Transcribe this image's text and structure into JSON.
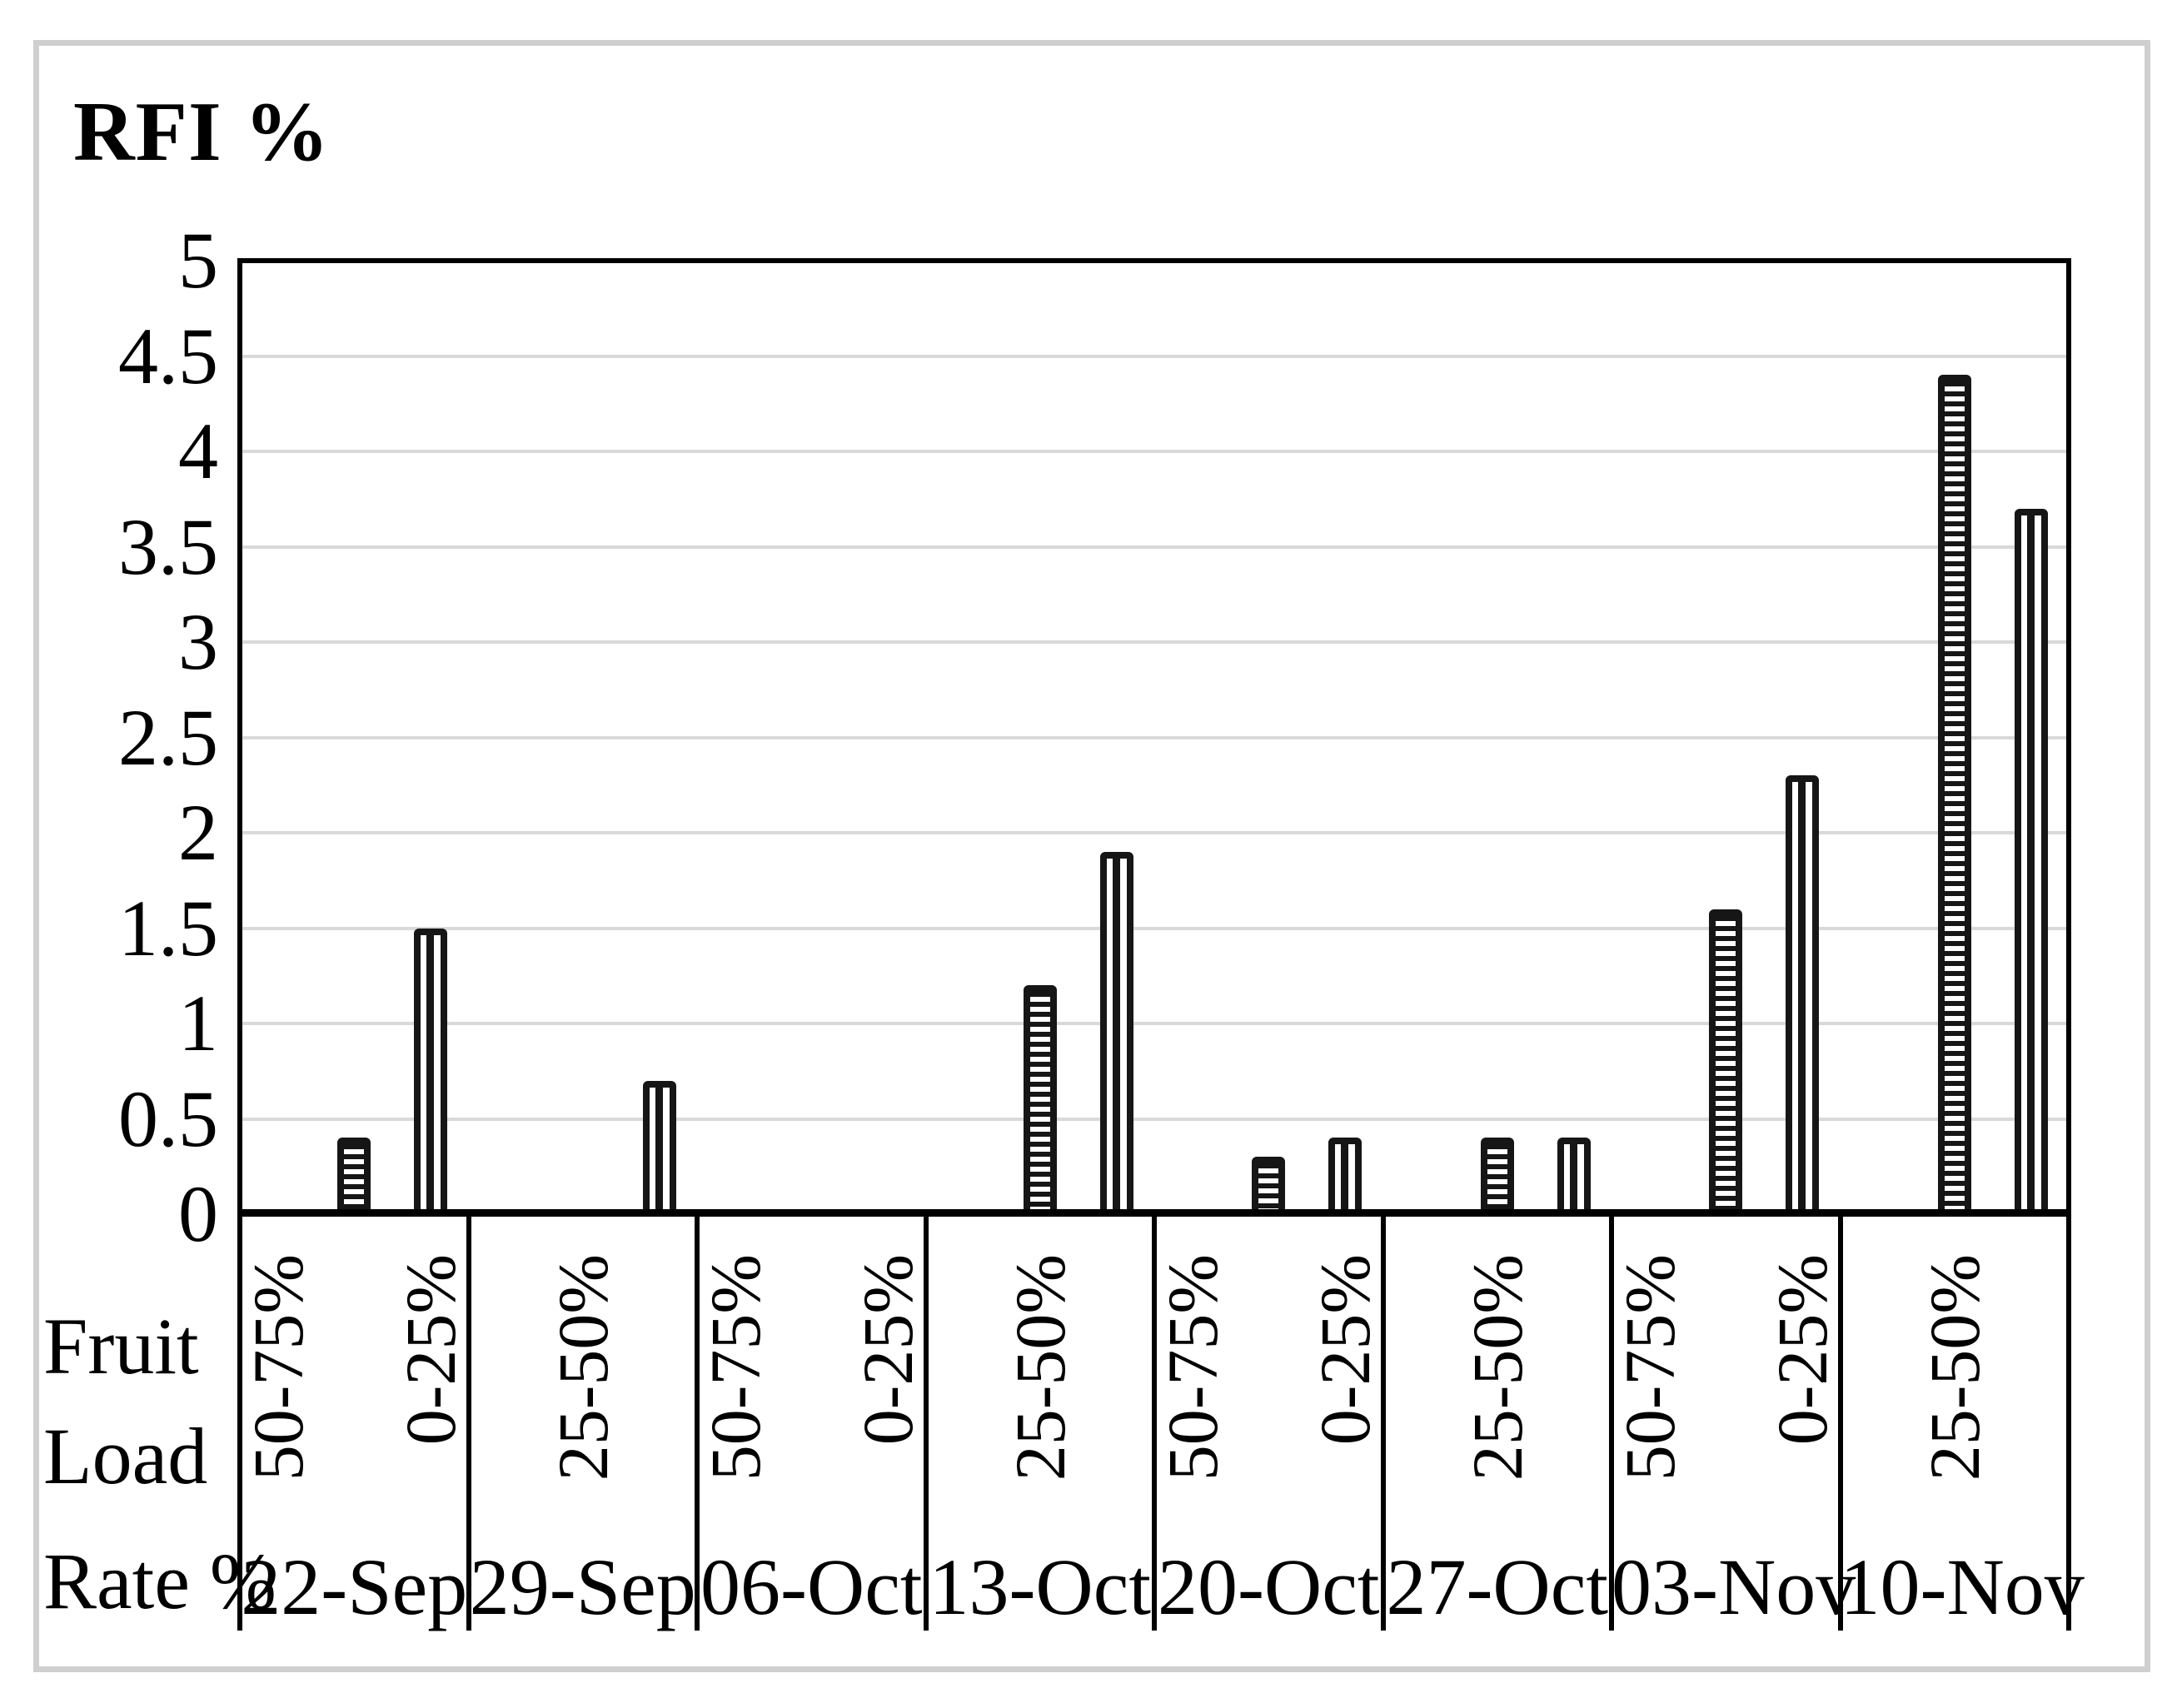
{
  "figure": {
    "title": "RFI %"
  },
  "chart_data": {
    "type": "bar",
    "title": "RFI %",
    "x_axis_title_lines": [
      "Fruit",
      "Load",
      "Rate %"
    ],
    "ylim": [
      0,
      5
    ],
    "ytick_step": 0.5,
    "ytick_labels": [
      "0",
      "0.5",
      "1",
      "1.5",
      "2",
      "2.5",
      "3",
      "3.5",
      "4",
      "4.5",
      "5"
    ],
    "grid": "horizontal-light-gray",
    "legend": "none",
    "categories": [
      "22-Sep",
      "29-Sep",
      "06-Oct",
      "13-Oct",
      "20-Oct",
      "27-Oct",
      "03-Nov",
      "10-Nov"
    ],
    "series": [
      {
        "name": "horizontal-stripes",
        "values": [
          0.4,
          null,
          null,
          1.2,
          0.3,
          0.4,
          1.6,
          4.4
        ]
      },
      {
        "name": "vertical-stripes",
        "values": [
          1.5,
          0.7,
          null,
          1.9,
          0.4,
          0.4,
          2.3,
          3.7
        ]
      }
    ],
    "groups": [
      {
        "date": "22-Sep",
        "slot_labels": [
          {
            "slot": "A",
            "text": "50-75%"
          },
          {
            "slot": "C",
            "text": "0-25%"
          }
        ],
        "bars": [
          {
            "slot": "B",
            "pattern": "horizontal-stripes",
            "value": 0.4
          },
          {
            "slot": "C",
            "pattern": "vertical-stripes",
            "value": 1.5
          }
        ]
      },
      {
        "date": "29-Sep",
        "slot_labels": [
          {
            "slot": "B",
            "text": "25-50%"
          }
        ],
        "bars": [
          {
            "slot": "C",
            "pattern": "vertical-stripes",
            "value": 0.7
          }
        ]
      },
      {
        "date": "06-Oct",
        "slot_labels": [
          {
            "slot": "A",
            "text": "50-75%"
          },
          {
            "slot": "C",
            "text": "0-25%"
          }
        ],
        "bars": []
      },
      {
        "date": "13-Oct",
        "slot_labels": [
          {
            "slot": "B",
            "text": "25-50%"
          }
        ],
        "bars": [
          {
            "slot": "B",
            "pattern": "horizontal-stripes",
            "value": 1.2
          },
          {
            "slot": "C",
            "pattern": "vertical-stripes",
            "value": 1.9
          }
        ]
      },
      {
        "date": "20-Oct",
        "slot_labels": [
          {
            "slot": "A",
            "text": "50-75%"
          },
          {
            "slot": "C",
            "text": "0-25%"
          }
        ],
        "bars": [
          {
            "slot": "B",
            "pattern": "horizontal-stripes",
            "value": 0.3
          },
          {
            "slot": "C",
            "pattern": "vertical-stripes",
            "value": 0.4
          }
        ]
      },
      {
        "date": "27-Oct",
        "slot_labels": [
          {
            "slot": "B",
            "text": "25-50%"
          }
        ],
        "bars": [
          {
            "slot": "B",
            "pattern": "horizontal-stripes",
            "value": 0.4
          },
          {
            "slot": "C",
            "pattern": "vertical-stripes",
            "value": 0.4
          }
        ]
      },
      {
        "date": "03-Nov",
        "slot_labels": [
          {
            "slot": "A",
            "text": "50-75%"
          },
          {
            "slot": "C",
            "text": "0-25%"
          }
        ],
        "bars": [
          {
            "slot": "B",
            "pattern": "horizontal-stripes",
            "value": 1.6
          },
          {
            "slot": "C",
            "pattern": "vertical-stripes",
            "value": 2.3
          }
        ]
      },
      {
        "date": "10-Nov",
        "slot_labels": [
          {
            "slot": "B",
            "text": "25-50%"
          }
        ],
        "bars": [
          {
            "slot": "B",
            "pattern": "horizontal-stripes",
            "value": 4.4
          },
          {
            "slot": "C",
            "pattern": "vertical-stripes",
            "value": 3.7
          }
        ]
      }
    ],
    "colors": {
      "bar": "#161616",
      "gridline": "#d9d9d9",
      "axis": "#000000",
      "figure_border": "#cfcfcf",
      "background": "#ffffff"
    }
  }
}
